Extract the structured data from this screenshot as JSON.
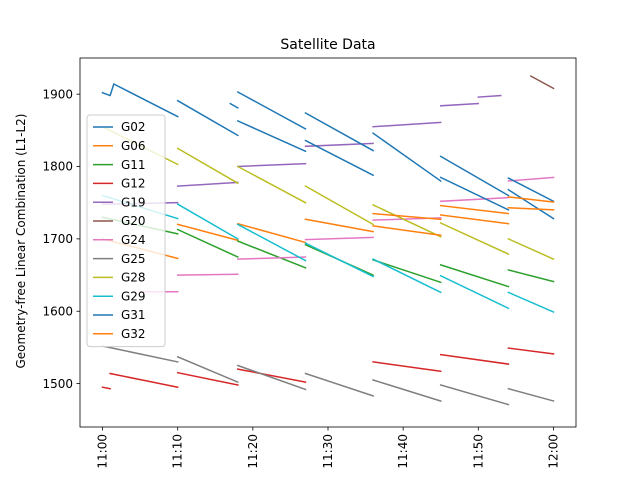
{
  "chart_data": {
    "type": "line",
    "title": "Satellite Data",
    "xlabel": "",
    "ylabel": "Geometry-free Linear Combination (L1-L2)",
    "xlim": [
      "10:57",
      "12:03"
    ],
    "ylim": [
      1440,
      1950
    ],
    "x_ticks": [
      "11:00",
      "11:10",
      "11:20",
      "11:30",
      "11:40",
      "11:50",
      "12:00"
    ],
    "y_ticks": [
      1500,
      1600,
      1700,
      1800,
      1900
    ],
    "grid": false,
    "legend_position": "upper-left",
    "series": [
      {
        "name": "G02",
        "color": "#1f77b4",
        "segments": [
          [
            [
              "11:00",
              1902
            ],
            [
              "11:01",
              1898
            ],
            [
              "11:01:30",
              1914
            ],
            [
              "11:10",
              1869
            ]
          ],
          [
            [
              "11:10",
              1891
            ],
            [
              "11:18",
              1843
            ]
          ],
          [
            [
              "11:18",
              1863
            ],
            [
              "11:27",
              1821
            ]
          ]
        ]
      },
      {
        "name": "G06",
        "color": "#ff7f0e",
        "segments": [
          [
            [
              "11:00",
              1700
            ],
            [
              "11:10",
              1673
            ]
          ],
          [
            [
              "11:10",
              1720
            ],
            [
              "11:18",
              1698
            ]
          ],
          [
            [
              "11:18",
              1721
            ],
            [
              "11:27",
              1695
            ]
          ],
          [
            [
              "11:27",
              1727
            ],
            [
              "11:36",
              1710
            ]
          ]
        ]
      },
      {
        "name": "G11",
        "color": "#2ca02c",
        "segments": [
          [
            [
              "11:00",
              1730
            ],
            [
              "11:10",
              1707
            ]
          ],
          [
            [
              "11:10",
              1713
            ],
            [
              "11:18",
              1675
            ]
          ],
          [
            [
              "11:18",
              1697
            ],
            [
              "11:27",
              1660
            ]
          ],
          [
            [
              "11:27",
              1692
            ],
            [
              "11:36",
              1650
            ]
          ],
          [
            [
              "11:36",
              1671
            ],
            [
              "11:45",
              1640
            ]
          ],
          [
            [
              "11:45",
              1664
            ],
            [
              "11:54",
              1634
            ]
          ],
          [
            [
              "11:54",
              1657
            ],
            [
              "12:00",
              1641
            ]
          ]
        ]
      },
      {
        "name": "G12",
        "color": "#d62728",
        "segments": [
          [
            [
              "11:00",
              1495
            ],
            [
              "11:01",
              1493
            ]
          ],
          [
            [
              "11:01",
              1514
            ],
            [
              "11:10",
              1495
            ]
          ],
          [
            [
              "11:10",
              1515
            ],
            [
              "11:18",
              1498
            ]
          ],
          [
            [
              "11:18",
              1520
            ],
            [
              "11:27",
              1502
            ]
          ],
          [
            [
              "11:36",
              1509
            ]
          ],
          [
            [
              "11:36",
              1530
            ],
            [
              "11:45",
              1517
            ]
          ],
          [
            [
              "11:45",
              1540
            ],
            [
              "11:54",
              1527
            ]
          ],
          [
            [
              "11:54",
              1549
            ],
            [
              "12:00",
              1541
            ]
          ]
        ]
      },
      {
        "name": "G19",
        "color": "#9467bd",
        "segments": [
          [
            [
              "11:00",
              1748
            ],
            [
              "11:10",
              1750
            ]
          ],
          [
            [
              "11:10",
              1773
            ],
            [
              "11:18",
              1778
            ]
          ],
          [
            [
              "11:18",
              1800
            ],
            [
              "11:27",
              1804
            ]
          ],
          [
            [
              "11:27",
              1828
            ],
            [
              "11:36",
              1832
            ]
          ],
          [
            [
              "11:36",
              1855
            ],
            [
              "11:45",
              1861
            ]
          ],
          [
            [
              "11:45",
              1884
            ],
            [
              "11:50",
              1887
            ]
          ],
          [
            [
              "11:50",
              1896
            ],
            [
              "11:53",
              1898
            ]
          ]
        ]
      },
      {
        "name": "G20",
        "color": "#8c564b",
        "segments": [
          [
            [
              "11:57",
              1925
            ],
            [
              "12:00",
              1908
            ]
          ]
        ]
      },
      {
        "name": "G24",
        "color": "#e377c2",
        "segments": [
          [
            [
              "11:05",
              1627
            ],
            [
              "11:10",
              1627
            ]
          ],
          [
            [
              "11:10",
              1650
            ],
            [
              "11:18",
              1651
            ]
          ],
          [
            [
              "11:18",
              1672
            ],
            [
              "11:27",
              1675
            ]
          ],
          [
            [
              "11:27",
              1699
            ],
            [
              "11:36",
              1702
            ]
          ],
          [
            [
              "11:36",
              1726
            ],
            [
              "11:45",
              1729
            ]
          ],
          [
            [
              "11:45",
              1752
            ],
            [
              "11:54",
              1757
            ]
          ],
          [
            [
              "11:54",
              1780
            ],
            [
              "12:00",
              1785
            ]
          ]
        ]
      },
      {
        "name": "G25",
        "color": "#7f7f7f",
        "segments": [
          [
            [
              "11:00",
              1552
            ],
            [
              "11:10",
              1530
            ]
          ],
          [
            [
              "11:10",
              1537
            ],
            [
              "11:18",
              1502
            ]
          ],
          [
            [
              "11:18",
              1525
            ],
            [
              "11:27",
              1492
            ]
          ],
          [
            [
              "11:27",
              1514
            ],
            [
              "11:36",
              1483
            ]
          ],
          [
            [
              "11:36",
              1505
            ],
            [
              "11:45",
              1476
            ]
          ],
          [
            [
              "11:45",
              1498
            ],
            [
              "11:54",
              1471
            ]
          ],
          [
            [
              "11:54",
              1493
            ],
            [
              "12:00",
              1476
            ]
          ]
        ]
      },
      {
        "name": "G28",
        "color": "#bcbd22",
        "segments": [
          [
            [
              "11:00",
              1855
            ],
            [
              "11:10",
              1803
            ]
          ],
          [
            [
              "11:10",
              1825
            ],
            [
              "11:18",
              1777
            ]
          ],
          [
            [
              "11:18",
              1800
            ],
            [
              "11:27",
              1750
            ]
          ],
          [
            [
              "11:27",
              1773
            ],
            [
              "11:36",
              1720
            ]
          ],
          [
            [
              "11:36",
              1747
            ],
            [
              "11:45",
              1703
            ]
          ],
          [
            [
              "11:45",
              1722
            ],
            [
              "11:54",
              1679
            ]
          ],
          [
            [
              "11:54",
              1700
            ],
            [
              "12:00",
              1672
            ]
          ]
        ]
      },
      {
        "name": "G29",
        "color": "#17becf",
        "segments": [
          [
            [
              "11:00",
              1760
            ],
            [
              "11:10",
              1728
            ]
          ],
          [
            [
              "11:10",
              1748
            ],
            [
              "11:18",
              1700
            ]
          ],
          [
            [
              "11:18",
              1720
            ],
            [
              "11:27",
              1670
            ]
          ],
          [
            [
              "11:27",
              1694
            ],
            [
              "11:36",
              1648
            ]
          ],
          [
            [
              "11:36",
              1672
            ],
            [
              "11:45",
              1626
            ]
          ],
          [
            [
              "11:45",
              1649
            ],
            [
              "11:54",
              1604
            ]
          ],
          [
            [
              "11:54",
              1626
            ],
            [
              "12:00",
              1599
            ]
          ]
        ]
      },
      {
        "name": "G31",
        "color": "#1f77b4",
        "segments": [
          [
            [
              "11:17",
              1887
            ],
            [
              "11:18",
              1881
            ]
          ],
          [
            [
              "11:18",
              1903
            ],
            [
              "11:27",
              1852
            ]
          ],
          [
            [
              "11:27",
              1874
            ],
            [
              "11:36",
              1822
            ]
          ],
          [
            [
              "11:27",
              1836
            ],
            [
              "11:36",
              1788
            ]
          ],
          [
            [
              "11:36",
              1846
            ],
            [
              "11:45",
              1780
            ]
          ],
          [
            [
              "11:45",
              1814
            ],
            [
              "11:54",
              1760
            ]
          ],
          [
            [
              "11:45",
              1785
            ],
            [
              "11:54",
              1740
            ]
          ],
          [
            [
              "11:54",
              1784
            ],
            [
              "12:00",
              1752
            ]
          ],
          [
            [
              "11:54",
              1768
            ],
            [
              "12:00",
              1728
            ]
          ]
        ]
      },
      {
        "name": "G32",
        "color": "#ff7f0e",
        "segments": [
          [
            [
              "11:36",
              1735
            ],
            [
              "11:45",
              1727
            ]
          ],
          [
            [
              "11:36",
              1718
            ],
            [
              "11:45",
              1705
            ]
          ],
          [
            [
              "11:45",
              1746
            ],
            [
              "11:54",
              1735
            ]
          ],
          [
            [
              "11:45",
              1733
            ],
            [
              "11:54",
              1721
            ]
          ],
          [
            [
              "11:54",
              1758
            ],
            [
              "12:00",
              1751
            ]
          ],
          [
            [
              "11:54",
              1743
            ],
            [
              "12:00",
              1740
            ]
          ]
        ]
      }
    ]
  }
}
